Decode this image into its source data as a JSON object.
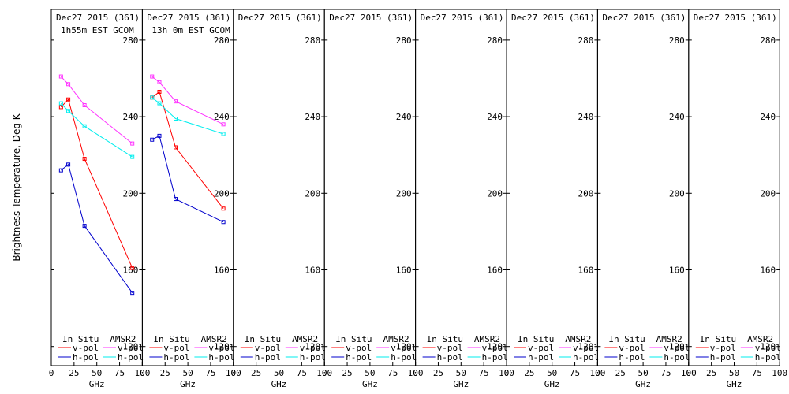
{
  "figure": {
    "ylabel": "Brightness Temperature, Deg K",
    "xlabel": "GHz",
    "x_ticks": [
      "0",
      "25",
      "50",
      "75",
      "100"
    ],
    "y_ticks": [
      "120",
      "160",
      "200",
      "240",
      "280"
    ],
    "legend": {
      "in_situ": "In Situ",
      "amsr2": "AMSR2",
      "vpol": "v-pol",
      "hpol": "h-pol"
    },
    "colors": {
      "in_situ_v": "#ff0000",
      "in_situ_h": "#0000cc",
      "amsr2_v": "#ff33ff",
      "amsr2_h": "#00eeee"
    }
  },
  "chart_data": [
    {
      "type": "line",
      "title": "Dec27 2015 (361)",
      "subtitle": "1h55m EST GCOM",
      "xlim": [
        0,
        100
      ],
      "ylim": [
        110,
        296
      ],
      "series": [
        {
          "name": "In Situ v-pol",
          "x": [
            10.7,
            18.7,
            36.5,
            89
          ],
          "values": [
            245,
            249,
            218,
            161
          ]
        },
        {
          "name": "In Situ h-pol",
          "x": [
            10.7,
            18.7,
            36.5,
            89
          ],
          "values": [
            212,
            215,
            183,
            148
          ]
        },
        {
          "name": "AMSR2 v-pol",
          "x": [
            10.7,
            18.7,
            36.5,
            89
          ],
          "values": [
            261,
            257,
            246,
            226
          ]
        },
        {
          "name": "AMSR2 h-pol",
          "x": [
            10.7,
            18.7,
            36.5,
            89
          ],
          "values": [
            247,
            243,
            235,
            219
          ]
        }
      ]
    },
    {
      "type": "line",
      "title": "Dec27 2015 (361)",
      "subtitle": "13h 0m EST GCOM",
      "xlim": [
        0,
        100
      ],
      "ylim": [
        110,
        296
      ],
      "series": [
        {
          "name": "In Situ v-pol",
          "x": [
            10.7,
            18.7,
            36.5,
            89
          ],
          "values": [
            250,
            253,
            224,
            192
          ]
        },
        {
          "name": "In Situ h-pol",
          "x": [
            10.7,
            18.7,
            36.5,
            89
          ],
          "values": [
            228,
            230,
            197,
            185
          ]
        },
        {
          "name": "AMSR2 v-pol",
          "x": [
            10.7,
            18.7,
            36.5,
            89
          ],
          "values": [
            261,
            258,
            248,
            236
          ]
        },
        {
          "name": "AMSR2 h-pol",
          "x": [
            10.7,
            18.7,
            36.5,
            89
          ],
          "values": [
            250,
            247,
            239,
            231
          ]
        }
      ]
    },
    {
      "type": "line",
      "title": "Dec27 2015 (361)",
      "subtitle": "",
      "xlim": [
        0,
        100
      ],
      "ylim": [
        110,
        296
      ],
      "series": []
    },
    {
      "type": "line",
      "title": "Dec27 2015 (361)",
      "subtitle": "",
      "xlim": [
        0,
        100
      ],
      "ylim": [
        110,
        296
      ],
      "series": []
    },
    {
      "type": "line",
      "title": "Dec27 2015 (361)",
      "subtitle": "",
      "xlim": [
        0,
        100
      ],
      "ylim": [
        110,
        296
      ],
      "series": []
    },
    {
      "type": "line",
      "title": "Dec27 2015 (361)",
      "subtitle": "",
      "xlim": [
        0,
        100
      ],
      "ylim": [
        110,
        296
      ],
      "series": []
    },
    {
      "type": "line",
      "title": "Dec27 2015 (361)",
      "subtitle": "",
      "xlim": [
        0,
        100
      ],
      "ylim": [
        110,
        296
      ],
      "series": []
    },
    {
      "type": "line",
      "title": "Dec27 2015 (361)",
      "subtitle": "",
      "xlim": [
        0,
        100
      ],
      "ylim": [
        110,
        296
      ],
      "series": []
    }
  ]
}
